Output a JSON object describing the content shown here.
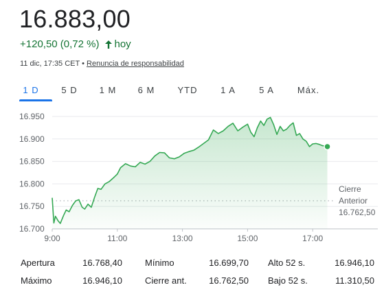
{
  "quote": {
    "price": "16.883,00",
    "change": "+120,50 (0,72 %)",
    "change_period": "hoy",
    "timestamp": "11 dic, 17:35 CET",
    "separator": "•",
    "disclaimer": "Renuncia de responsabilidad"
  },
  "tabs": [
    "1 D",
    "5 D",
    "1 M",
    "6 M",
    "YTD",
    "1 A",
    "5 A",
    "Máx."
  ],
  "active_tab": "1 D",
  "previous_close": {
    "label_line1": "Cierre",
    "label_line2": "Anterior",
    "value": "16.762,50"
  },
  "colors": {
    "up": "#137333",
    "line": "#34a853",
    "accent": "#1a73e8"
  },
  "chart_data": {
    "type": "area",
    "y_ticks": [
      "16.950",
      "16.900",
      "16.850",
      "16.800",
      "16.750",
      "16.700"
    ],
    "x_ticks": [
      "9:00",
      "11:00",
      "13:00",
      "15:00",
      "17:00"
    ],
    "ylim": [
      16700,
      16950
    ],
    "xlim_hours": [
      9,
      17.5
    ],
    "reference_line": 16762.5,
    "series": [
      {
        "x": [
          9.0,
          9.05,
          9.1,
          9.18,
          9.25,
          9.35,
          9.43,
          9.52,
          9.62,
          9.72,
          9.82,
          9.92,
          10.0,
          10.1,
          10.2,
          10.3,
          10.4,
          10.5,
          10.62,
          10.75,
          10.9,
          11.0,
          11.1,
          11.25,
          11.4,
          11.55,
          11.7,
          11.85,
          12.0,
          12.15,
          12.3,
          12.45,
          12.6,
          12.75,
          12.9,
          13.05,
          13.2,
          13.35,
          13.5,
          13.65,
          13.8,
          13.95,
          14.1,
          14.25,
          14.4,
          14.55,
          14.7,
          14.85,
          15.0,
          15.1,
          15.2,
          15.3,
          15.4,
          15.5,
          15.6,
          15.7,
          15.8,
          15.9,
          16.0,
          16.1,
          16.2,
          16.3,
          16.4,
          16.5,
          16.6,
          16.7,
          16.8,
          16.9,
          17.0,
          17.1,
          17.2,
          17.3,
          17.4,
          17.45
        ],
        "y": [
          16769,
          16713,
          16728,
          16718,
          16712,
          16730,
          16742,
          16738,
          16752,
          16762,
          16765,
          16748,
          16744,
          16755,
          16748,
          16770,
          16790,
          16788,
          16800,
          16805,
          16815,
          16822,
          16836,
          16845,
          16840,
          16838,
          16848,
          16844,
          16850,
          16862,
          16870,
          16869,
          16858,
          16856,
          16860,
          16868,
          16872,
          16875,
          16882,
          16890,
          16898,
          16920,
          16912,
          16918,
          16928,
          16935,
          16918,
          16926,
          16933,
          16915,
          16905,
          16925,
          16940,
          16930,
          16944,
          16948,
          16932,
          16910,
          16928,
          16918,
          16922,
          16930,
          16936,
          16908,
          16912,
          16900,
          16895,
          16883,
          16889,
          16890,
          16888,
          16885,
          16884,
          16883
        ]
      }
    ]
  },
  "stats": [
    [
      {
        "label": "Apertura",
        "value": "16.768,40"
      },
      {
        "label": "Mínimo",
        "value": "16.699,70"
      },
      {
        "label": "Alto 52 s.",
        "value": "16.946,10"
      }
    ],
    [
      {
        "label": "Máximo",
        "value": "16.946,10"
      },
      {
        "label": "Cierre ant.",
        "value": "16.762,50"
      },
      {
        "label": "Bajo 52 s.",
        "value": "11.310,50"
      }
    ]
  ]
}
